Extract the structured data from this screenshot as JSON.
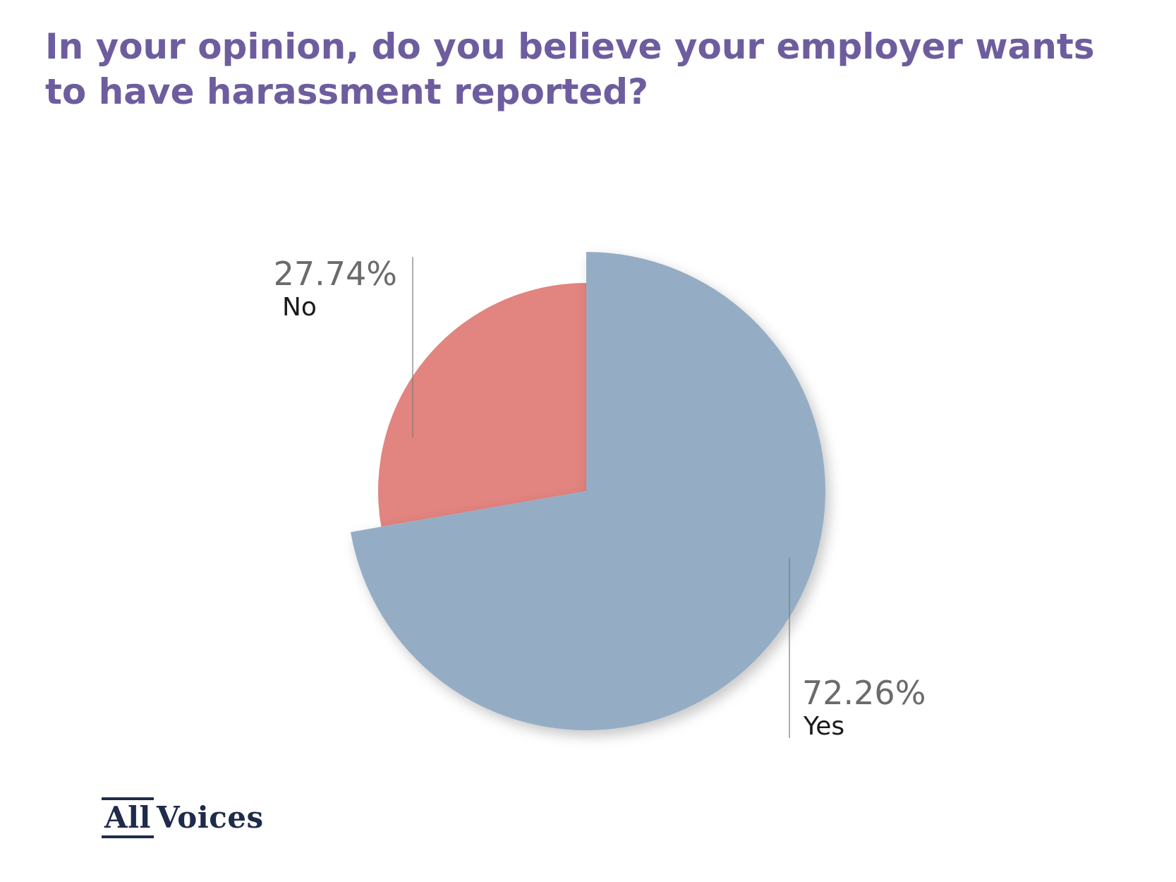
{
  "chart_data": {
    "type": "pie",
    "title": "In your opinion, do you believe your employer wants to have harassment reported?",
    "slices": [
      {
        "label": "Yes",
        "value": 72.26,
        "display": "72.26%",
        "color": "#95adc4",
        "exploded": true
      },
      {
        "label": "No",
        "value": 27.74,
        "display": "27.74%",
        "color": "#e2847f",
        "exploded": false
      }
    ],
    "start_angle": "12 o'clock",
    "direction": "clockwise"
  },
  "brand": {
    "logo_part1": "All",
    "logo_part2": "Voices",
    "color": "#1e2b4a"
  },
  "colors": {
    "title": "#6e5d9e",
    "percent_text": "#6b6b6b",
    "label_text": "#1a1a1a"
  }
}
